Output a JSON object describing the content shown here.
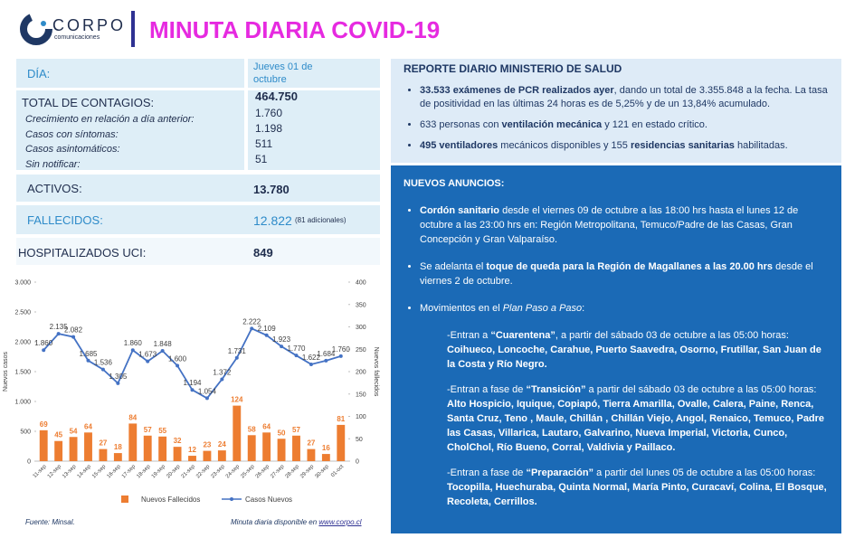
{
  "header": {
    "logo": "CORPO",
    "logo_sub": "comunicaciones",
    "title": "MINUTA DIARIA COVID-19"
  },
  "stats": {
    "day": {
      "label": "DÍA:",
      "value": "Jueves 01 de octubre"
    },
    "total": {
      "label": "TOTAL DE CONTAGIOS:",
      "value": "464.750",
      "details": [
        {
          "label": "Crecimiento en relación a día anterior:",
          "value": "1.760"
        },
        {
          "label": "Casos con síntomas:",
          "value": "1.198"
        },
        {
          "label": "Casos asintomáticos:",
          "value": "511"
        },
        {
          "label": "Sin notificar:",
          "value": "51"
        }
      ]
    },
    "active": {
      "label": "ACTIVOS:",
      "value": "13.780"
    },
    "deaths": {
      "label": "FALLECIDOS:",
      "value": "12.822",
      "note": "(81 adicionales)"
    },
    "icu": {
      "label": "HOSPITALIZADOS UCI:",
      "value": "849"
    }
  },
  "chart_data": {
    "type": "bar",
    "categories": [
      "11-sep",
      "12-sep",
      "13-sep",
      "14-sep",
      "15-sep",
      "16-sep",
      "17-sep",
      "18-sep",
      "19-sep",
      "20-sep",
      "21-sep",
      "22-sep",
      "23-sep",
      "24-sep",
      "25-sep",
      "26-sep",
      "27-sep",
      "28-sep",
      "29-sep",
      "30-sep",
      "01-oct"
    ],
    "series": [
      {
        "name": "Nuevos Fallecidos",
        "type": "bar",
        "color": "#ed7d31",
        "axis": "y2",
        "values": [
          69,
          45,
          54,
          64,
          27,
          18,
          84,
          57,
          55,
          32,
          12,
          23,
          24,
          124,
          58,
          64,
          50,
          57,
          27,
          16,
          81
        ]
      },
      {
        "name": "Casos Nuevos",
        "type": "line",
        "color": "#4472c4",
        "values": [
          1860,
          2135,
          2082,
          1685,
          1536,
          1305,
          1860,
          1673,
          1848,
          1600,
          1194,
          1054,
          1372,
          1731,
          2222,
          2109,
          1923,
          1770,
          1622,
          1684,
          1760
        ],
        "value_labels": [
          "1.860",
          "2.135",
          "2.082",
          "1.685",
          "1.536",
          "1.305",
          "1.860",
          "1.673",
          "1.848",
          "1.600",
          "1.194",
          "1.054",
          "1.372",
          "1.731",
          "2.222",
          "2.109",
          "1.923",
          "1.770",
          "1.622",
          "1.684",
          "1.760"
        ]
      }
    ],
    "y_label": "Nuevos casos",
    "y2_label": "Nuevos fallecidos",
    "ylim": [
      0,
      3000
    ],
    "yticks": [
      0,
      500,
      {
        "value": 1000,
        "label": "1.000"
      },
      {
        "value": 1500,
        "label": "1.500"
      },
      {
        "value": 2000,
        "label": "2.000"
      },
      {
        "value": 2500,
        "label": "2.500"
      },
      {
        "value": 3000,
        "label": "3.000"
      }
    ],
    "y2lim": [
      0,
      400
    ],
    "y2ticks": [
      0,
      50,
      100,
      150,
      200,
      250,
      300,
      350,
      400
    ],
    "legend": "bottom"
  },
  "report": {
    "title": "REPORTE DIARIO MINISTERIO DE SALUD",
    "bullets": [
      [
        "33.533 exámenes de PCR realizados ayer",
        ", dando un total de 3.355.848 a la fecha. La tasa de positividad en las últimas 24 horas es de 5,25% y de un 13,84%  acumulado."
      ],
      [
        "633 personas con ",
        "ventilación mecánica",
        " y 121 en estado crítico."
      ],
      [
        "495 ventiladores",
        " mecánicos disponibles y 155 ",
        "residencias sanitarias",
        " habilitadas."
      ]
    ]
  },
  "announcements": {
    "title": "NUEVOS ANUNCIOS:",
    "items": [
      [
        "Cordón sanitario",
        " desde el viernes 09 de octubre a las 18:00 hrs hasta el lunes 12 de octubre a las 23:00 hrs en: Región Metropolitana, Temuco/Padre de las Casas, Gran Concepción y Gran Valparaíso."
      ],
      [
        "Se adelanta el ",
        "toque de queda para la Región de Magallanes a las 20.00 hrs",
        " desde el viernes 2 de octubre."
      ],
      [
        "Movimientos en el ",
        "Plan Paso a Paso",
        ":"
      ]
    ],
    "phases": [
      [
        "-Entran a ",
        "“Cuarentena”",
        ", a partir del sábado 03 de octubre a las 05:00 horas: ",
        "Coihueco, Loncoche, Carahue, Puerto Saavedra, Osorno, Frutillar, San Juan de la Costa y Río Negro."
      ],
      [
        "-Entran a fase de ",
        "“Transición”",
        " a partir del sábado 03 de octubre a las 05:00 horas: ",
        "Alto Hospicio, Iquique, Copiapó, Tierra Amarilla, Ovalle, Calera, Paine, Renca, Santa Cruz, Teno , Maule, Chillán , Chillán Viejo, Angol, Renaico, Temuco, Padre las Casas, Villarica, Lautaro, Galvarino, Nueva Imperial, Victoria, Cunco, CholChol, Río Bueno, Corral, Valdivia y Paillaco."
      ],
      [
        "-Entran  a fase de ",
        "“Preparación”",
        " a partir del lunes  05 de octubre a las 05:00 horas: ",
        "Tocopilla, Huechuraba, Quinta Normal, María Pinto, Curacaví, Colina, El Bosque, Recoleta, Cerrillos."
      ]
    ]
  },
  "footer": {
    "source": "Fuente: Minsal.",
    "availability": "Minuta diaria disponible en ",
    "link": "www.corpo.cl"
  }
}
